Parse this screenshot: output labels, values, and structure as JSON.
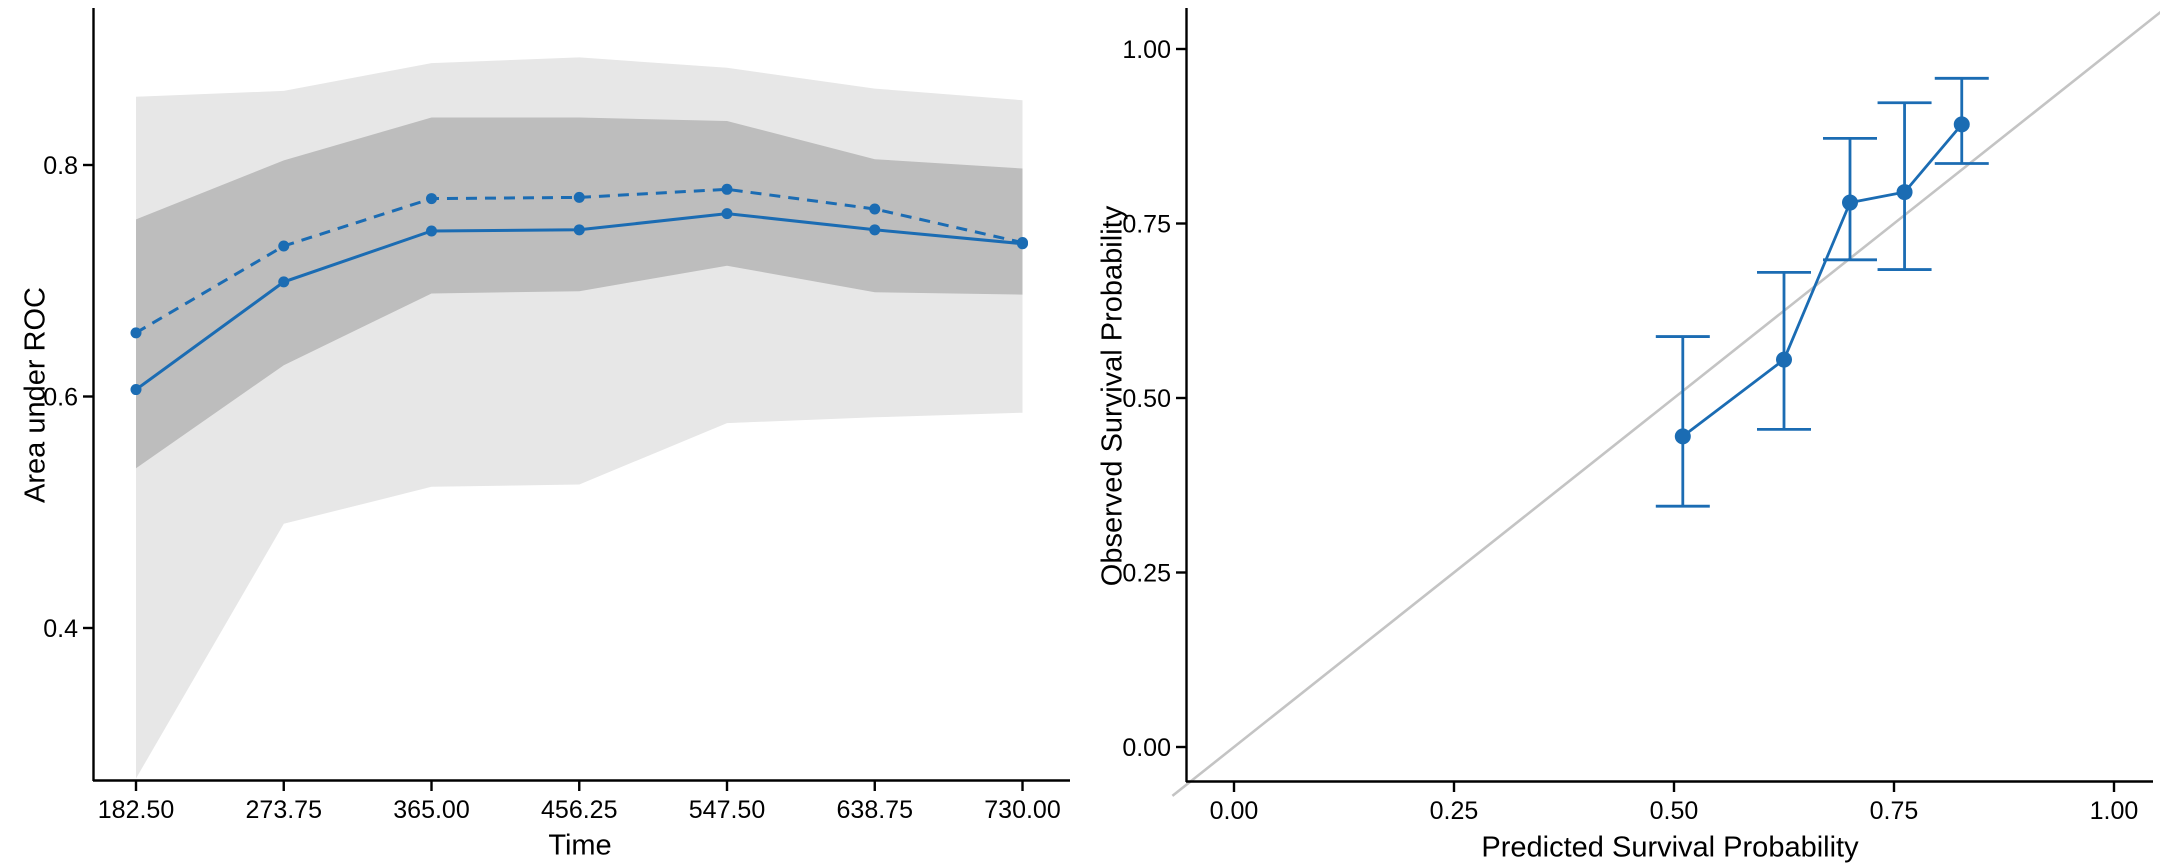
{
  "figure": {
    "background": "#ffffff"
  },
  "colors": {
    "series_blue": "#1b6cb3",
    "band_inner": "#bdbdbd",
    "band_outer": "#e7e7e7",
    "reference_line": "#c4c4c4",
    "axis": "#000000",
    "text": "#000000"
  },
  "chart_data": [
    {
      "type": "line",
      "title": "",
      "xlabel": "Time",
      "ylabel": "Area under ROC",
      "x": [
        182.5,
        273.75,
        365.0,
        456.25,
        547.5,
        638.75,
        730.0
      ],
      "x_tick_labels": [
        "182.50",
        "273.75",
        "365.00",
        "456.25",
        "547.50",
        "638.75",
        "730.00"
      ],
      "y_ticks": [
        0.4,
        0.6,
        0.8
      ],
      "y_tick_labels": [
        "0.4",
        "0.6",
        "0.8"
      ],
      "xlim": [
        156,
        1058
      ],
      "ylim": [
        0.268,
        0.936
      ],
      "grid": false,
      "legend": "none",
      "series": [
        {
          "name": "auc-dashed",
          "line_style": "dashed",
          "marker": "circle",
          "values": [
            0.655,
            0.73,
            0.771,
            0.772,
            0.779,
            0.762,
            0.733
          ]
        },
        {
          "name": "auc-solid",
          "line_style": "solid",
          "marker": "circle",
          "values": [
            0.606,
            0.699,
            0.743,
            0.744,
            0.758,
            0.744,
            0.732
          ]
        }
      ],
      "bands": [
        {
          "name": "outer-band",
          "upper": [
            0.859,
            0.864,
            0.888,
            0.893,
            0.884,
            0.866,
            0.856
          ],
          "lower": [
            0.27,
            0.49,
            0.522,
            0.524,
            0.577,
            0.582,
            0.586
          ]
        },
        {
          "name": "inner-band",
          "upper": [
            0.753,
            0.804,
            0.841,
            0.841,
            0.838,
            0.805,
            0.797
          ],
          "lower": [
            0.538,
            0.627,
            0.689,
            0.691,
            0.713,
            0.69,
            0.688
          ]
        }
      ]
    },
    {
      "type": "scatter",
      "title": "",
      "xlabel": "Predicted Survival Probability",
      "ylabel": "Observed Survival Probability",
      "x_ticks": [
        0.0,
        0.25,
        0.5,
        0.75,
        1.0
      ],
      "x_tick_labels": [
        "0.00",
        "0.25",
        "0.50",
        "0.75",
        "1.00"
      ],
      "y_ticks": [
        0.0,
        0.25,
        0.5,
        0.75,
        1.0
      ],
      "y_tick_labels": [
        "0.00",
        "0.25",
        "0.50",
        "0.75",
        "1.00"
      ],
      "xlim": [
        -0.06,
        1.06
      ],
      "ylim": [
        -0.06,
        1.06
      ],
      "grid": false,
      "legend": "none",
      "reference_line": {
        "kind": "identity",
        "label": "y = x"
      },
      "points": [
        {
          "x": 0.51,
          "y": 0.445,
          "lower": 0.345,
          "upper": 0.588
        },
        {
          "x": 0.625,
          "y": 0.555,
          "lower": 0.455,
          "upper": 0.68
        },
        {
          "x": 0.7,
          "y": 0.78,
          "lower": 0.698,
          "upper": 0.872
        },
        {
          "x": 0.762,
          "y": 0.795,
          "lower": 0.684,
          "upper": 0.923
        },
        {
          "x": 0.827,
          "y": 0.892,
          "lower": 0.836,
          "upper": 0.958
        }
      ]
    }
  ]
}
